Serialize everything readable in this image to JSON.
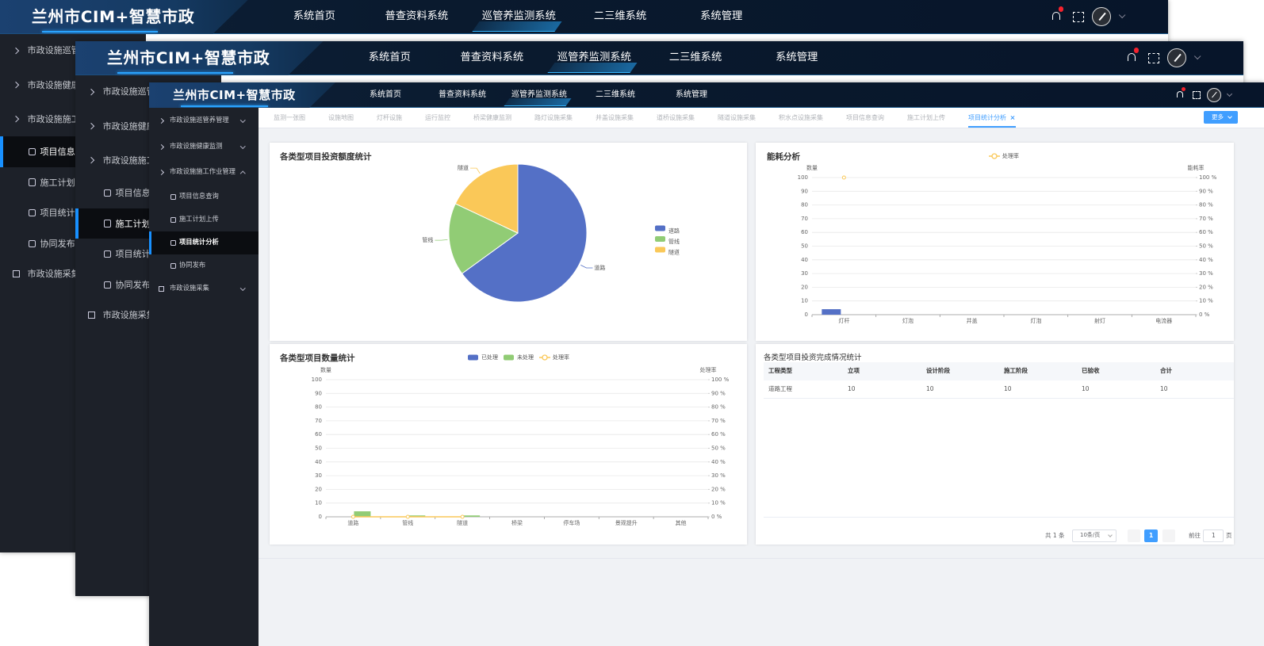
{
  "header": {
    "logo": "兰州市CIM+智慧市政",
    "nav": [
      "系统首页",
      "普查资料系统",
      "巡管养监测系统",
      "二三维系统",
      "系统管理"
    ],
    "active_nav": 2
  },
  "sidebar": {
    "items": [
      {
        "label": "市政设施巡管养管理",
        "level": 1
      },
      {
        "label": "市政设施健康监测",
        "level": 1
      },
      {
        "label": "市政设施施工作业管理",
        "level": 1
      },
      {
        "label": "项目信息查询",
        "level": 2
      },
      {
        "label": "施工计划上传",
        "level": 2
      },
      {
        "label": "项目统计分析",
        "level": 2
      },
      {
        "label": "协同发布",
        "level": 2
      },
      {
        "label": "市政设施采集",
        "level": 1
      }
    ]
  },
  "tabs": {
    "items": [
      "监测一张图",
      "设施地图",
      "灯杆设施",
      "运行监控",
      "桥梁健康监测",
      "路灯设施采集",
      "井盖设施采集",
      "道桥设施采集",
      "隧道设施采集",
      "积水点设施采集",
      "项目信息查询",
      "施工计划上传",
      "项目统计分析"
    ],
    "active": 12,
    "more": "更多"
  },
  "chart_data": [
    {
      "type": "pie",
      "title": "各类型项目投资额度统计",
      "categories": [
        "道路",
        "管线",
        "隧道"
      ],
      "values": [
        65,
        17,
        18
      ],
      "colors": [
        "#5470c6",
        "#91cc75",
        "#fac858"
      ],
      "legend": "right"
    },
    {
      "type": "bar-line",
      "title": "能耗分析",
      "categories": [
        "灯杆",
        "灯泡",
        "井盖",
        "灯泡",
        "射灯",
        "电流器"
      ],
      "ylabel": "数量",
      "y2label": "能耗率",
      "series": [
        {
          "color": "#5470c6",
          "values": [
            4,
            0,
            0,
            0,
            0,
            0
          ]
        },
        {
          "name": "处理率",
          "type": "line",
          "axis": "y2",
          "color": "#fac858",
          "values": [
            100,
            null,
            null,
            null,
            null,
            null
          ]
        }
      ],
      "ylim": [
        0,
        100
      ],
      "yticks": [
        0,
        10,
        20,
        30,
        40,
        50,
        60,
        70,
        80,
        90,
        100
      ],
      "y2lim": [
        0,
        100
      ],
      "y2ticks": [
        {
          "value": 0,
          "label": "0 %"
        },
        {
          "value": 10,
          "label": "10 %"
        },
        {
          "value": 20,
          "label": "20 %"
        },
        {
          "value": 30,
          "label": "30 %"
        },
        {
          "value": 40,
          "label": "40 %"
        },
        {
          "value": 50,
          "label": "50 %"
        },
        {
          "value": 60,
          "label": "60 %"
        },
        {
          "value": 70,
          "label": "70 %"
        },
        {
          "value": 80,
          "label": "80 %"
        },
        {
          "value": 90,
          "label": "90 %"
        },
        {
          "value": 100,
          "label": "100 %"
        }
      ],
      "grid": true
    },
    {
      "type": "bar-line",
      "title": "各类型项目数量统计",
      "categories": [
        "道路",
        "管线",
        "隧道",
        "桥梁",
        "停车场",
        "景观提升",
        "其他"
      ],
      "ylabel": "数量",
      "y2label": "处理率",
      "series": [
        {
          "name": "已处理",
          "color": "#5470c6",
          "values": [
            0,
            0,
            0,
            0,
            0,
            0,
            0
          ]
        },
        {
          "name": "未处理",
          "color": "#91cc75",
          "values": [
            4,
            1,
            1,
            0,
            0,
            0,
            0
          ]
        },
        {
          "name": "处理率",
          "type": "line",
          "axis": "y2",
          "color": "#fac858",
          "values": [
            0,
            0,
            0,
            null,
            null,
            null,
            null
          ]
        }
      ],
      "ylim": [
        0,
        100
      ],
      "yticks": [
        0,
        10,
        20,
        30,
        40,
        50,
        60,
        70,
        80,
        90,
        100
      ],
      "y2lim": [
        0,
        100
      ],
      "y2ticks": [
        {
          "value": 0,
          "label": "0 %"
        },
        {
          "value": 10,
          "label": "10 %"
        },
        {
          "value": 20,
          "label": "20 %"
        },
        {
          "value": 30,
          "label": "30 %"
        },
        {
          "value": 40,
          "label": "40 %"
        },
        {
          "value": 50,
          "label": "50 %"
        },
        {
          "value": 60,
          "label": "60 %"
        },
        {
          "value": 70,
          "label": "70 %"
        },
        {
          "value": 80,
          "label": "80 %"
        },
        {
          "value": 90,
          "label": "90 %"
        },
        {
          "value": 100,
          "label": "100 %"
        }
      ],
      "grid": true
    }
  ],
  "table": {
    "title": "各类型项目投资完成情况统计",
    "columns": [
      "工程类型",
      "立项",
      "设计阶段",
      "施工阶段",
      "已验收",
      "合计"
    ],
    "rows": [
      [
        "道路工程",
        "10",
        "10",
        "10",
        "10",
        "10"
      ]
    ]
  },
  "pagination": {
    "total": "共 1 条",
    "page_size": "10条/页",
    "current": "1",
    "goto": "前往",
    "goto_value": "1",
    "page_unit": "页"
  }
}
